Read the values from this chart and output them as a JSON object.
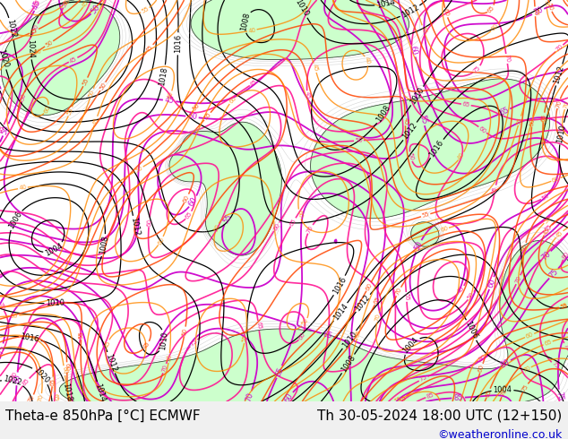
{
  "left_label": "Theta-e 850hPa [°C] ECMWF",
  "right_label": "Th 30-05-2024 18:00 UTC (12+150)",
  "credit": "©weatheronline.co.uk",
  "bg_color": "#f0f0f0",
  "map_bg": "#ffffff",
  "land_color": "#ccffcc",
  "sea_color": "#f8f8ff",
  "label_color": "#000000",
  "credit_color": "#0000cc",
  "label_fontsize": 11,
  "credit_fontsize": 9,
  "fig_width": 6.34,
  "fig_height": 4.9,
  "dpi": 100,
  "bottom_bar_height": 0.085
}
